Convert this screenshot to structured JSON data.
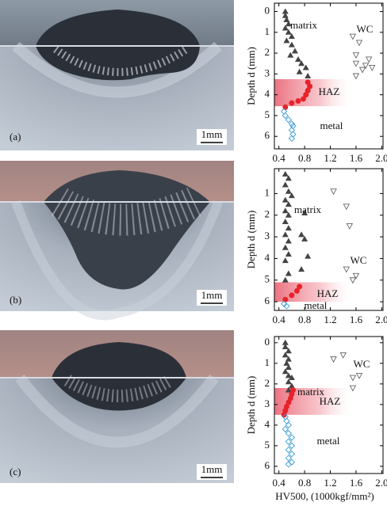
{
  "images": [
    {
      "label": "(a)",
      "scale": "1mm"
    },
    {
      "label": "(b)",
      "scale": "1mm"
    },
    {
      "label": "(c)",
      "scale": "1mm"
    }
  ],
  "chart_data": [
    {
      "type": "scatter",
      "y_label": "Depth d (mm)",
      "y_inverted": true,
      "xlim": [
        0.33,
        2.02
      ],
      "ylim": [
        -0.4,
        6.6
      ],
      "xticks": [
        0.4,
        0.8,
        1.2,
        1.6,
        {
          "value": 2,
          "label": "2.0"
        }
      ],
      "yticks": [
        0,
        1,
        2,
        3,
        4,
        5,
        6
      ],
      "haz_band": [
        3.25,
        4.55
      ],
      "series": [
        {
          "name": "matrix",
          "color": "#444444",
          "x": [
            0.5,
            0.5,
            0.52,
            0.55,
            0.5,
            0.55,
            0.6,
            0.52,
            0.6,
            0.65,
            0.58,
            0.7,
            0.75,
            0.82,
            0.72,
            0.85
          ],
          "values": [
            0,
            0.2,
            0.4,
            0.6,
            0.8,
            1.0,
            1.2,
            1.4,
            1.6,
            1.9,
            2.1,
            2.3,
            2.5,
            2.7,
            2.9,
            3.1
          ]
        },
        {
          "name": "WC",
          "color": "#666666",
          "x": [
            1.55,
            1.65,
            1.6,
            1.8,
            1.6,
            1.75,
            1.85,
            1.7,
            1.6
          ],
          "values": [
            1.2,
            1.5,
            2.1,
            2.3,
            2.5,
            2.6,
            2.7,
            2.8,
            3.1
          ]
        },
        {
          "name": "HAZ",
          "color": "#e8222a",
          "x": [
            0.85,
            0.88,
            0.85,
            0.82,
            0.78,
            0.7,
            0.6,
            0.5
          ],
          "values": [
            3.4,
            3.6,
            3.8,
            4.0,
            4.2,
            4.3,
            4.4,
            4.6
          ]
        },
        {
          "name": "metal",
          "color": "#3a9ad9",
          "x": [
            0.48,
            0.5,
            0.55,
            0.6,
            0.62,
            0.6,
            0.62,
            0.6
          ],
          "values": [
            4.8,
            5.0,
            5.2,
            5.4,
            5.5,
            5.7,
            5.9,
            6.1
          ]
        }
      ]
    },
    {
      "type": "scatter",
      "y_label": "Depth d (mm)",
      "y_inverted": true,
      "xlim": [
        0.33,
        2.02
      ],
      "ylim": [
        -0.15,
        6.4
      ],
      "xticks": [
        0.4,
        0.8,
        1.2,
        1.6,
        {
          "value": 2,
          "label": "2.0"
        }
      ],
      "yticks": [
        1,
        2,
        3,
        4,
        5,
        6
      ],
      "haz_band": [
        5.1,
        6.0
      ],
      "series": [
        {
          "name": "matrix",
          "color": "#444444",
          "x": [
            0.5,
            0.55,
            0.5,
            0.55,
            0.6,
            0.5,
            0.55,
            0.5,
            0.55,
            0.8,
            0.5,
            0.55,
            0.5,
            0.75,
            0.55,
            0.8,
            0.5,
            0.55,
            0.85,
            0.5,
            0.75,
            0.55,
            0.5
          ],
          "values": [
            0.1,
            0.3,
            0.6,
            0.9,
            1.1,
            1.3,
            1.5,
            1.8,
            2.0,
            1.9,
            2.3,
            2.6,
            2.9,
            2.9,
            3.2,
            3.1,
            3.5,
            3.8,
            3.9,
            4.1,
            4.5,
            4.7,
            5.0
          ]
        },
        {
          "name": "WC",
          "color": "#666666",
          "x": [
            1.25,
            1.45,
            1.5,
            1.45,
            1.6,
            1.55
          ],
          "values": [
            0.9,
            1.6,
            2.5,
            4.5,
            4.8,
            5.0
          ]
        },
        {
          "name": "HAZ",
          "color": "#e8222a",
          "x": [
            0.72,
            0.68,
            0.6,
            0.5
          ],
          "values": [
            5.3,
            5.5,
            5.7,
            5.9
          ]
        },
        {
          "name": "metal",
          "color": "#3a9ad9",
          "x": [
            0.48,
            0.52
          ],
          "values": [
            6.1,
            6.2
          ]
        }
      ]
    },
    {
      "type": "scatter",
      "y_label": "Depth d (mm)",
      "x_label": "HV500, (1000kgf/mm²)",
      "y_inverted": true,
      "xlim": [
        0.33,
        2.02
      ],
      "ylim": [
        -0.3,
        6.35
      ],
      "xticks": [
        0.4,
        0.8,
        1.2,
        1.6,
        {
          "value": 2,
          "label": "2.0"
        }
      ],
      "yticks": [
        0,
        1,
        2,
        3,
        4,
        5,
        6
      ],
      "haz_band": [
        2.2,
        3.5
      ],
      "series": [
        {
          "name": "matrix",
          "color": "#444444",
          "x": [
            0.5,
            0.5,
            0.55,
            0.5,
            0.55,
            0.52,
            0.55,
            0.5,
            0.55,
            0.6,
            0.55,
            0.6,
            0.55
          ],
          "values": [
            0,
            0.2,
            0.4,
            0.6,
            0.8,
            1.0,
            1.2,
            1.4,
            1.6,
            1.7,
            1.9,
            2.1,
            2.3
          ]
        },
        {
          "name": "WC",
          "color": "#666666",
          "x": [
            1.25,
            1.4,
            1.55,
            1.65,
            1.55
          ],
          "values": [
            0.8,
            0.6,
            1.7,
            1.6,
            2.2
          ]
        },
        {
          "name": "HAZ",
          "color": "#e8222a",
          "x": [
            0.62,
            0.6,
            0.58,
            0.55,
            0.52,
            0.5,
            0.48
          ],
          "values": [
            2.3,
            2.5,
            2.7,
            2.9,
            3.1,
            3.3,
            3.5
          ]
        },
        {
          "name": "metal",
          "color": "#3a9ad9",
          "x": [
            0.5,
            0.52,
            0.55,
            0.5,
            0.55,
            0.6,
            0.55,
            0.6,
            0.55,
            0.6,
            0.55,
            0.6,
            0.55
          ],
          "values": [
            3.6,
            3.8,
            4.0,
            4.2,
            4.4,
            4.6,
            4.8,
            5.0,
            5.2,
            5.4,
            5.6,
            5.8,
            5.9
          ]
        }
      ]
    }
  ]
}
